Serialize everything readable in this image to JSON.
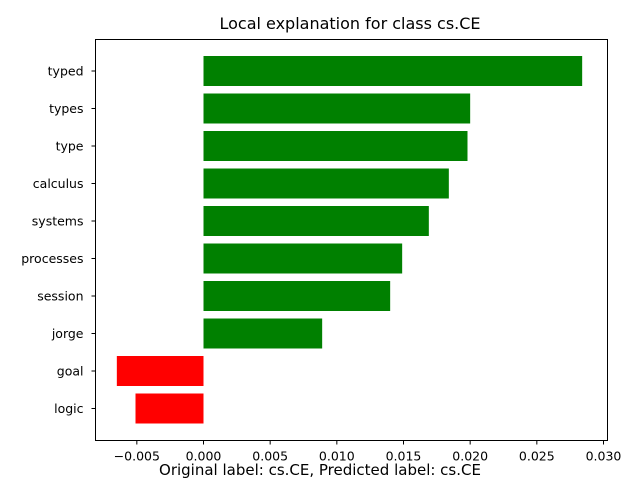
{
  "chart_data": {
    "type": "bar",
    "orientation": "horizontal",
    "title": "Local explanation for class cs.CE",
    "caption": "Original label: cs.CE, Predicted label: cs.CE",
    "xlabel": "",
    "ylabel": "",
    "categories": [
      "typed",
      "types",
      "type",
      "calculus",
      "systems",
      "processes",
      "session",
      "jorge",
      "goal",
      "logic"
    ],
    "values": [
      0.0284,
      0.02,
      0.0198,
      0.0184,
      0.0169,
      0.0149,
      0.014,
      0.0089,
      -0.0065,
      -0.0051
    ],
    "colors": {
      "positive": "#008000",
      "negative": "#ff0000"
    },
    "xlim": [
      -0.0081,
      0.0303
    ],
    "xticks": [
      -0.005,
      0.0,
      0.005,
      0.01,
      0.015,
      0.02,
      0.025,
      0.03
    ],
    "xtick_labels": [
      "−0.005",
      "0.000",
      "0.005",
      "0.010",
      "0.015",
      "0.020",
      "0.025",
      "0.030"
    ],
    "grid": false,
    "legend": "none"
  }
}
